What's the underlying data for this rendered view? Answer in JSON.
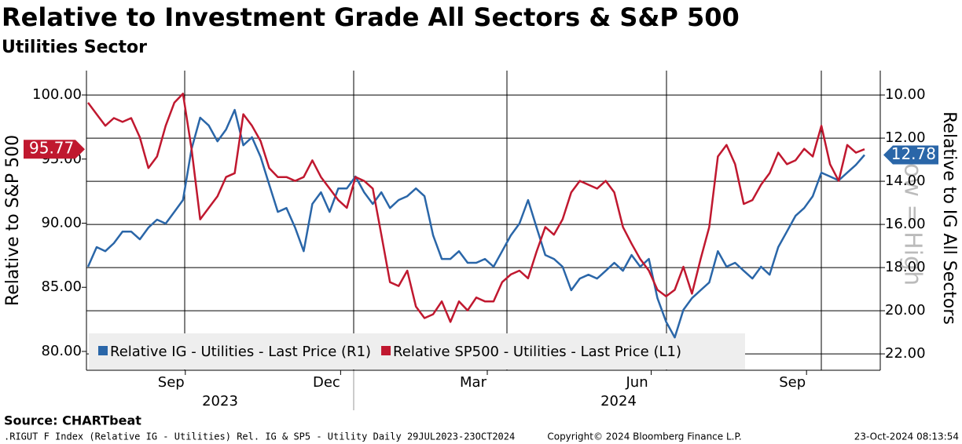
{
  "chart_data": {
    "type": "line",
    "title": "Relative to Investment Grade All Sectors & S&P 500",
    "subtitle": "Utilities Sector",
    "y_label": "Relative to S&P 500",
    "y2_label": "Relative to IG All Sectors",
    "annotation": "Low = High",
    "categories": [
      null,
      null,
      null,
      null,
      null,
      null,
      null,
      null,
      null,
      null,
      "Sep",
      null,
      null,
      null,
      null,
      null,
      null,
      null,
      null,
      null,
      null,
      null,
      null,
      null,
      null,
      null,
      null,
      null,
      "Dec",
      null,
      null,
      null,
      null,
      null,
      null,
      null,
      null,
      null,
      null,
      null,
      null,
      null,
      null,
      null,
      null,
      "Mar",
      null,
      null,
      null,
      null,
      null,
      null,
      null,
      null,
      null,
      null,
      null,
      null,
      null,
      null,
      null,
      null,
      null,
      null,
      "Jun",
      null,
      null,
      null,
      null,
      null,
      null,
      null,
      null,
      null,
      null,
      null,
      null,
      null,
      null,
      null,
      null,
      null,
      "Sep",
      null,
      null,
      null,
      null,
      null,
      null,
      null,
      null
    ],
    "year_labels": [
      "2023",
      "2024"
    ],
    "series": [
      {
        "name": "Relative IG - Utilities - Last Price (R1)",
        "color": "#2a66a8",
        "axis": "y2",
        "values": [
          17.96,
          17.05,
          17.24,
          16.87,
          16.33,
          16.33,
          16.69,
          16.15,
          15.78,
          15.96,
          15.42,
          14.87,
          12.51,
          11.05,
          11.42,
          12.15,
          11.6,
          10.69,
          12.33,
          11.96,
          12.87,
          14.15,
          15.42,
          15.24,
          16.15,
          17.24,
          15.05,
          14.51,
          15.42,
          14.33,
          14.33,
          13.78,
          14.51,
          15.05,
          14.51,
          15.24,
          14.87,
          14.69,
          14.33,
          14.69,
          16.51,
          17.6,
          17.6,
          17.24,
          17.78,
          17.78,
          17.6,
          17.96,
          17.24,
          16.51,
          15.96,
          14.87,
          16.15,
          17.42,
          17.6,
          17.96,
          19.05,
          18.51,
          18.33,
          18.51,
          18.15,
          17.78,
          18.15,
          17.42,
          17.96,
          17.6,
          19.42,
          20.51,
          21.24,
          19.96,
          19.42,
          19.05,
          18.69,
          17.24,
          17.96,
          17.78,
          18.15,
          18.51,
          17.96,
          18.33,
          17.05,
          16.33,
          15.6,
          15.24,
          14.69,
          13.6,
          13.78,
          13.96,
          13.6,
          13.24,
          12.78
        ]
      },
      {
        "name": "Relative SP500 - Utilities - Last Price (L1)",
        "color": "#c0182f",
        "values": [
          99.4,
          98.5,
          97.6,
          98.2,
          97.9,
          98.2,
          96.7,
          94.3,
          95.2,
          97.6,
          99.4,
          100.1,
          95.8,
          90.3,
          91.2,
          92.1,
          93.6,
          93.9,
          98.5,
          97.6,
          96.4,
          94.3,
          93.6,
          93.6,
          93.3,
          93.6,
          94.9,
          93.6,
          92.7,
          91.8,
          91.2,
          93.6,
          93.3,
          92.7,
          89.1,
          85.4,
          85.1,
          86.3,
          83.5,
          82.6,
          82.9,
          83.9,
          82.3,
          83.9,
          83.2,
          84.2,
          83.9,
          83.9,
          85.4,
          86.0,
          86.3,
          85.7,
          87.8,
          89.7,
          89.1,
          90.3,
          92.4,
          93.3,
          93.0,
          92.7,
          93.3,
          92.4,
          89.7,
          88.4,
          87.2,
          86.3,
          84.8,
          84.3,
          84.8,
          86.6,
          84.5,
          87.2,
          89.7,
          95.2,
          96.1,
          94.6,
          91.5,
          91.8,
          93.0,
          93.9,
          95.5,
          94.6,
          94.9,
          95.8,
          95.2,
          97.6,
          94.6,
          93.3,
          96.1,
          95.5,
          95.77
        ]
      }
    ],
    "ylim": [
      78.53,
      101.9
    ],
    "yticks": [
      {
        "value": 80,
        "label": "80.00"
      },
      {
        "value": 85,
        "label": "85.00"
      },
      {
        "value": 90,
        "label": "90.00"
      },
      {
        "value": 95,
        "label": "95.00"
      },
      {
        "value": 100,
        "label": "100.00"
      }
    ],
    "y2lim": [
      22.76,
      8.87
    ],
    "y2ticks": [
      {
        "value": 10,
        "label": "10.00"
      },
      {
        "value": 12,
        "label": "12.00"
      },
      {
        "value": 14,
        "label": "14.00"
      },
      {
        "value": 16,
        "label": "16.00"
      },
      {
        "value": 18,
        "label": "18.00"
      },
      {
        "value": 20,
        "label": "20.00"
      },
      {
        "value": 22,
        "label": "22.00"
      }
    ],
    "grid": true,
    "legend": "bottom-left",
    "source": "Source: CHARTbeat",
    "footer_left": ".RIGUT F Index (Relative IG - Utilities) Rel. IG & SP5 - Utility  Daily 29JUL2023-23OCT2024",
    "footer_center": "Copyright© 2024 Bloomberg Finance L.P.",
    "footer_right": "23-Oct-2024 08:13:54"
  }
}
